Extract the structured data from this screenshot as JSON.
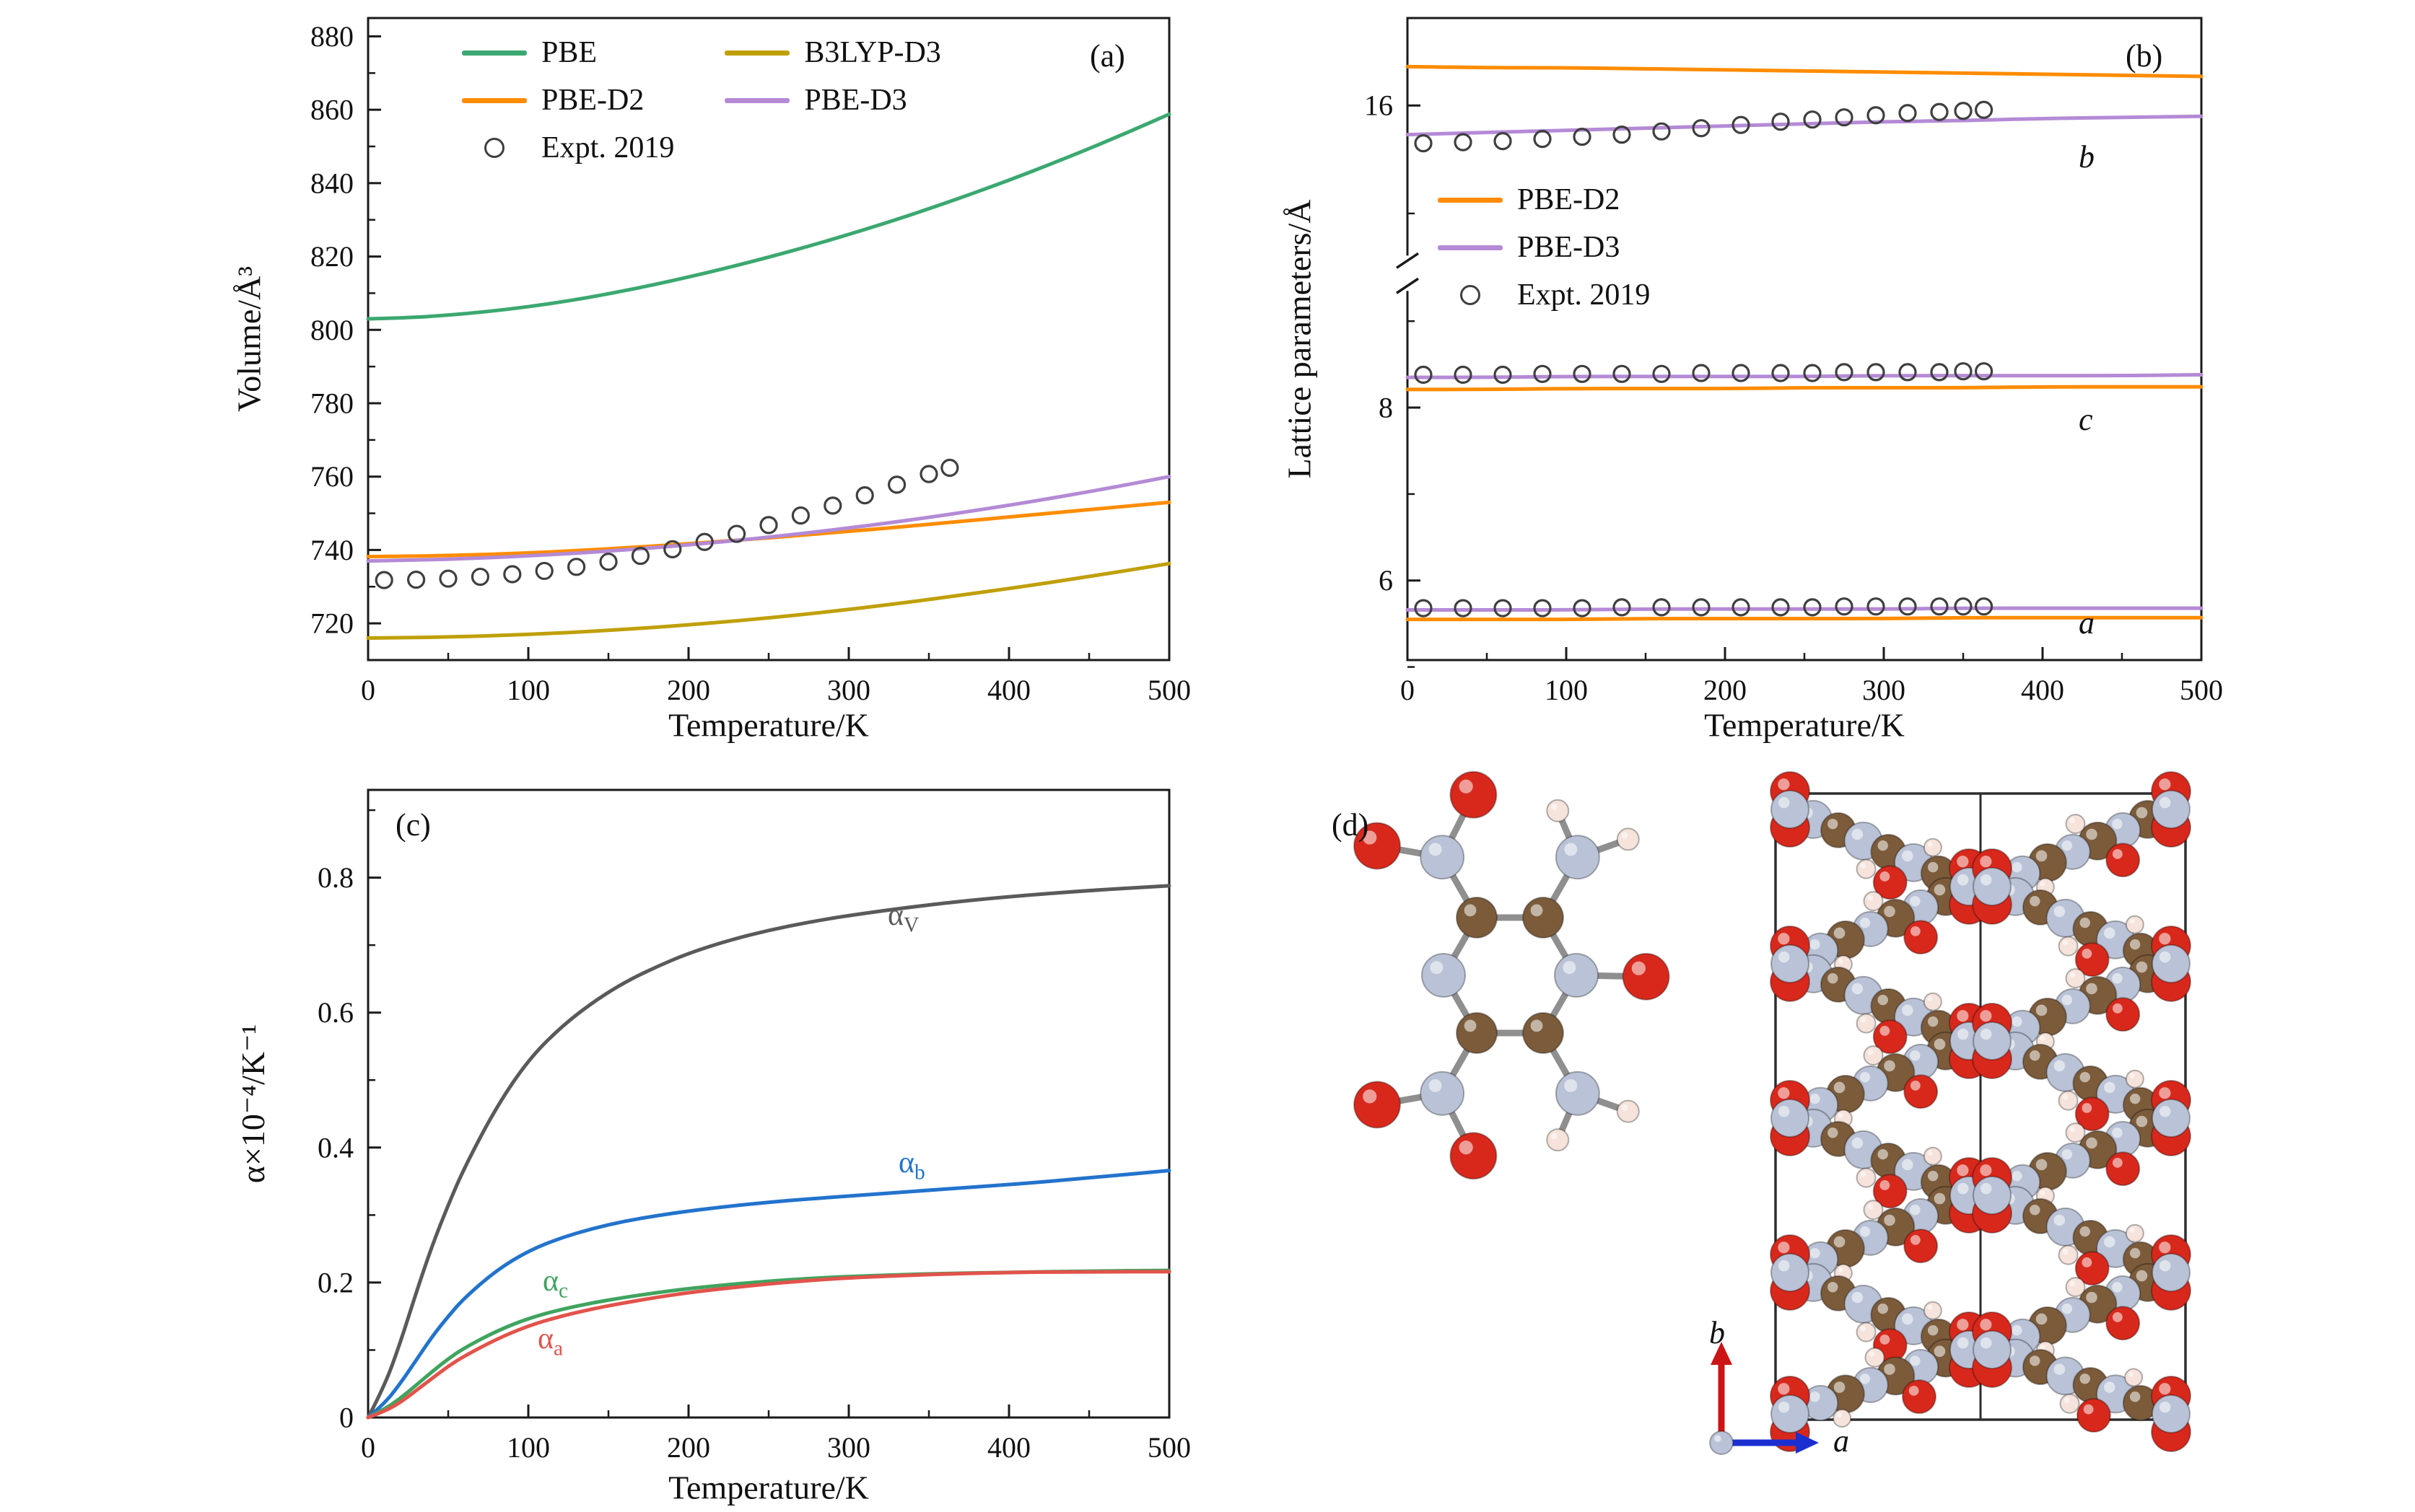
{
  "figure": {
    "panel_labels": {
      "a": "(a)",
      "b": "(b)",
      "c": "(c)",
      "d": "(d)"
    }
  },
  "colors": {
    "pbe": "#3ba870",
    "pbe_d2": "#ff8c00",
    "b3lyp_d3": "#c0a00a",
    "pbe_d3": "#b48ad6",
    "expt": "#3f3f3f",
    "alpha_v": "#5a5a5a",
    "alpha_b": "#2273cc",
    "alpha_c": "#3fa45f",
    "alpha_a": "#e2534b",
    "atom_O": "#d8281c",
    "atom_N": "#b9c2d6",
    "atom_C": "#7b5b3a",
    "atom_H": "#f5e3dc",
    "b_arrow": "#cc1414",
    "a_arrow": "#1b2fd0"
  },
  "chart_data": [
    {
      "id": "a",
      "type": "line",
      "xlabel": "Temperature/K",
      "ylabel": "Volume/Å³",
      "xlim": [
        0,
        500
      ],
      "xticks": [
        0,
        100,
        200,
        300,
        400,
        500
      ],
      "x_minor": [
        50,
        150,
        250,
        350,
        450
      ],
      "ylim": [
        710,
        885
      ],
      "yticks": [
        720,
        740,
        760,
        780,
        800,
        820,
        840,
        860,
        880
      ],
      "y_minor": [
        730,
        750,
        770,
        790,
        810,
        830,
        850,
        870
      ],
      "x": [
        0,
        25,
        50,
        75,
        100,
        125,
        150,
        175,
        200,
        225,
        250,
        275,
        300,
        325,
        350,
        375,
        400,
        425,
        450,
        475,
        500
      ],
      "series": [
        {
          "name": "PBE",
          "color_key": "pbe",
          "y": [
            803.0,
            803.3,
            804.0,
            805.0,
            806.3,
            807.9,
            809.8,
            812.0,
            814.4,
            817.0,
            819.8,
            822.8,
            826.0,
            829.4,
            833.0,
            836.8,
            840.8,
            845.0,
            849.4,
            854.0,
            858.8
          ]
        },
        {
          "name": "PBE-D2",
          "color_key": "pbe_d2",
          "y": [
            738.2,
            738.3,
            738.5,
            738.8,
            739.2,
            739.7,
            740.3,
            741.0,
            741.7,
            742.5,
            743.3,
            744.2,
            745.1,
            746.0,
            747.0,
            748.0,
            749.0,
            750.0,
            751.0,
            752.0,
            753.0
          ]
        },
        {
          "name": "B3LYP-D3",
          "color_key": "b3lyp_d3",
          "y": [
            716.0,
            716.1,
            716.3,
            716.6,
            717.0,
            717.5,
            718.1,
            718.8,
            719.6,
            720.5,
            721.5,
            722.6,
            723.8,
            725.1,
            726.5,
            728.0,
            729.5,
            731.1,
            732.8,
            734.5,
            736.3
          ]
        },
        {
          "name": "PBE-D3",
          "color_key": "pbe_d3",
          "y": [
            737.0,
            737.2,
            737.5,
            737.9,
            738.4,
            739.0,
            739.7,
            740.5,
            741.4,
            742.4,
            743.5,
            744.7,
            746.0,
            747.4,
            748.9,
            750.5,
            752.2,
            754.0,
            755.9,
            757.9,
            760.0
          ]
        }
      ],
      "scatter": [
        {
          "name": "Expt. 2019",
          "color_key": "expt",
          "x": [
            10,
            30,
            50,
            70,
            90,
            110,
            130,
            150,
            170,
            190,
            210,
            230,
            250,
            270,
            290,
            310,
            330,
            350,
            363
          ],
          "y": [
            731.8,
            731.9,
            732.2,
            732.7,
            733.4,
            734.3,
            735.4,
            736.8,
            738.4,
            740.2,
            742.2,
            744.4,
            746.8,
            749.4,
            752.1,
            754.9,
            757.8,
            760.7,
            762.4
          ]
        }
      ],
      "legend": {
        "items": [
          {
            "label": "PBE",
            "swatch": "line",
            "color_key": "pbe"
          },
          {
            "label": "PBE-D2",
            "swatch": "line",
            "color_key": "pbe_d2"
          },
          {
            "label": "Expt. 2019",
            "swatch": "circle",
            "color_key": "expt"
          },
          {
            "label": "B3LYP-D3",
            "swatch": "line",
            "color_key": "b3lyp_d3"
          },
          {
            "label": "PBE-D3",
            "swatch": "line",
            "color_key": "pbe_d3"
          }
        ]
      }
    },
    {
      "id": "b",
      "type": "line",
      "xlabel": "Temperature/K",
      "ylabel": "Lattice parameters/Å",
      "xlim": [
        0,
        500
      ],
      "xticks": [
        0,
        100,
        200,
        300,
        400,
        500
      ],
      "x_minor": [
        50,
        150,
        250,
        350,
        450
      ],
      "y_segments": [
        {
          "range": [
            14.61,
            16.81
          ],
          "frac": [
            0,
            0.37
          ],
          "ticks": [
            16
          ],
          "minor": [
            15
          ]
        },
        {
          "range": [
            5.08,
            9.35
          ],
          "frac": [
            0.425,
            1.0
          ],
          "ticks": [
            8,
            6
          ],
          "minor": [
            5,
            7,
            9
          ]
        }
      ],
      "y_break": {
        "frac": [
          0.37,
          0.425
        ]
      },
      "x": [
        0,
        50,
        100,
        150,
        200,
        250,
        300,
        350,
        400,
        450,
        500
      ],
      "series": [
        {
          "name": "b-PBE-D2",
          "color_key": "pbe_d2",
          "y": [
            16.36,
            16.35,
            16.35,
            16.34,
            16.33,
            16.32,
            16.31,
            16.3,
            16.29,
            16.28,
            16.27
          ]
        },
        {
          "name": "b-PBE-D3",
          "color_key": "pbe_d3",
          "y": [
            15.73,
            15.75,
            15.77,
            15.79,
            15.81,
            15.83,
            15.85,
            15.86,
            15.88,
            15.89,
            15.9
          ]
        },
        {
          "name": "c-PBE-D3",
          "color_key": "pbe_d3",
          "y": [
            8.35,
            8.35,
            8.36,
            8.36,
            8.36,
            8.36,
            8.37,
            8.37,
            8.37,
            8.37,
            8.38
          ]
        },
        {
          "name": "c-PBE-D2",
          "color_key": "pbe_d2",
          "y": [
            8.21,
            8.21,
            8.22,
            8.22,
            8.22,
            8.23,
            8.23,
            8.23,
            8.24,
            8.24,
            8.24
          ]
        },
        {
          "name": "a-PBE-D3",
          "color_key": "pbe_d3",
          "y": [
            5.66,
            5.66,
            5.66,
            5.67,
            5.67,
            5.67,
            5.67,
            5.68,
            5.68,
            5.68,
            5.68
          ]
        },
        {
          "name": "a-PBE-D2",
          "color_key": "pbe_d2",
          "y": [
            5.55,
            5.55,
            5.55,
            5.56,
            5.56,
            5.56,
            5.56,
            5.57,
            5.57,
            5.57,
            5.57
          ]
        }
      ],
      "scatter": [
        {
          "name": "Expt-2019-b",
          "color_key": "expt",
          "x": [
            10,
            35,
            60,
            85,
            110,
            135,
            160,
            185,
            210,
            235,
            255,
            275,
            295,
            315,
            335,
            350,
            363
          ],
          "y": [
            15.65,
            15.66,
            15.67,
            15.69,
            15.71,
            15.73,
            15.76,
            15.79,
            15.82,
            15.85,
            15.87,
            15.89,
            15.91,
            15.93,
            15.94,
            15.95,
            15.96
          ]
        },
        {
          "name": "Expt-2019-c",
          "color_key": "expt",
          "x": [
            10,
            35,
            60,
            85,
            110,
            135,
            160,
            185,
            210,
            235,
            255,
            275,
            295,
            315,
            335,
            350,
            363
          ],
          "y": [
            8.38,
            8.38,
            8.38,
            8.39,
            8.39,
            8.39,
            8.39,
            8.4,
            8.4,
            8.4,
            8.4,
            8.41,
            8.41,
            8.41,
            8.41,
            8.42,
            8.42
          ]
        },
        {
          "name": "Expt-2019-a",
          "color_key": "expt",
          "x": [
            10,
            35,
            60,
            85,
            110,
            135,
            160,
            185,
            210,
            235,
            255,
            275,
            295,
            315,
            335,
            350,
            363
          ],
          "y": [
            5.68,
            5.68,
            5.68,
            5.68,
            5.68,
            5.69,
            5.69,
            5.69,
            5.69,
            5.69,
            5.69,
            5.7,
            5.7,
            5.7,
            5.7,
            5.7,
            5.7
          ]
        }
      ],
      "curve_letters": [
        "b",
        "c",
        "a"
      ],
      "legend": {
        "items": [
          {
            "label": "PBE-D2",
            "swatch": "line",
            "color_key": "pbe_d2"
          },
          {
            "label": "PBE-D3",
            "swatch": "line",
            "color_key": "pbe_d3"
          },
          {
            "label": "Expt. 2019",
            "swatch": "circle",
            "color_key": "expt"
          }
        ]
      }
    },
    {
      "id": "c",
      "type": "line",
      "xlabel": "Temperature/K",
      "ylabel": "α×10⁻⁴/K⁻¹",
      "xlim": [
        0,
        500
      ],
      "xticks": [
        0,
        100,
        200,
        300,
        400,
        500
      ],
      "x_minor": [
        50,
        150,
        250,
        350,
        450
      ],
      "ylim": [
        0,
        0.93
      ],
      "yticks": [
        0,
        0.2,
        0.4,
        0.6,
        0.8
      ],
      "y_minor": [
        0.1,
        0.3,
        0.5,
        0.7,
        0.9
      ],
      "x": [
        0,
        10,
        20,
        30,
        40,
        50,
        60,
        80,
        100,
        120,
        140,
        160,
        180,
        200,
        225,
        250,
        275,
        300,
        350,
        400,
        450,
        500
      ],
      "series": [
        {
          "name": "alpha-V",
          "color_key": "alpha_v",
          "y": [
            0,
            0.045,
            0.11,
            0.185,
            0.255,
            0.315,
            0.37,
            0.46,
            0.53,
            0.578,
            0.615,
            0.645,
            0.668,
            0.688,
            0.707,
            0.722,
            0.734,
            0.744,
            0.76,
            0.772,
            0.781,
            0.788
          ]
        },
        {
          "name": "alpha-b",
          "color_key": "alpha_b",
          "y": [
            0,
            0.02,
            0.05,
            0.085,
            0.12,
            0.15,
            0.177,
            0.218,
            0.247,
            0.266,
            0.28,
            0.291,
            0.299,
            0.306,
            0.313,
            0.319,
            0.324,
            0.328,
            0.337,
            0.345,
            0.355,
            0.366
          ]
        },
        {
          "name": "alpha-c",
          "color_key": "alpha_c",
          "y": [
            0,
            0.012,
            0.028,
            0.048,
            0.068,
            0.087,
            0.103,
            0.128,
            0.147,
            0.16,
            0.17,
            0.178,
            0.185,
            0.191,
            0.197,
            0.202,
            0.206,
            0.209,
            0.213,
            0.215,
            0.217,
            0.218
          ]
        },
        {
          "name": "alpha-a",
          "color_key": "alpha_a",
          "y": [
            0,
            0.009,
            0.022,
            0.04,
            0.058,
            0.076,
            0.091,
            0.116,
            0.136,
            0.15,
            0.161,
            0.17,
            0.178,
            0.185,
            0.192,
            0.198,
            0.203,
            0.207,
            0.212,
            0.215,
            0.216,
            0.216
          ]
        }
      ],
      "series_labels": [
        {
          "main": "α",
          "sub": "V"
        },
        {
          "main": "α",
          "sub": "b"
        },
        {
          "main": "α",
          "sub": "c"
        },
        {
          "main": "α",
          "sub": "a"
        }
      ]
    }
  ],
  "panel_d": {
    "axis_labels": {
      "b": "b",
      "a": "a"
    },
    "molecule": {
      "atoms": [
        [
          "C",
          -0.5,
          -0.87
        ],
        [
          "N",
          -1,
          0
        ],
        [
          "C",
          -0.5,
          0.87
        ],
        [
          "C",
          0.5,
          0.87
        ],
        [
          "N",
          1,
          0
        ],
        [
          "C",
          0.5,
          -0.87
        ],
        [
          "N",
          -1.02,
          -1.78
        ],
        [
          "O",
          -0.55,
          -2.72
        ],
        [
          "O",
          -2.0,
          -1.95
        ],
        [
          "N",
          1.02,
          -1.78
        ],
        [
          "H",
          0.72,
          -2.48
        ],
        [
          "H",
          1.78,
          -2.05
        ],
        [
          "O",
          2.05,
          0.02
        ],
        [
          "N",
          -1.02,
          1.78
        ],
        [
          "O",
          -2.0,
          1.95
        ],
        [
          "O",
          -0.55,
          2.72
        ],
        [
          "N",
          1.02,
          1.78
        ],
        [
          "H",
          1.78,
          2.05
        ],
        [
          "H",
          0.72,
          2.48
        ]
      ],
      "bonds": [
        [
          0,
          1
        ],
        [
          1,
          2
        ],
        [
          2,
          3
        ],
        [
          3,
          4
        ],
        [
          4,
          5
        ],
        [
          5,
          0
        ],
        [
          0,
          6
        ],
        [
          6,
          7
        ],
        [
          6,
          8
        ],
        [
          5,
          9
        ],
        [
          9,
          10
        ],
        [
          9,
          11
        ],
        [
          4,
          12
        ],
        [
          2,
          13
        ],
        [
          13,
          14
        ],
        [
          13,
          15
        ],
        [
          3,
          16
        ],
        [
          16,
          17
        ],
        [
          16,
          18
        ]
      ]
    }
  }
}
